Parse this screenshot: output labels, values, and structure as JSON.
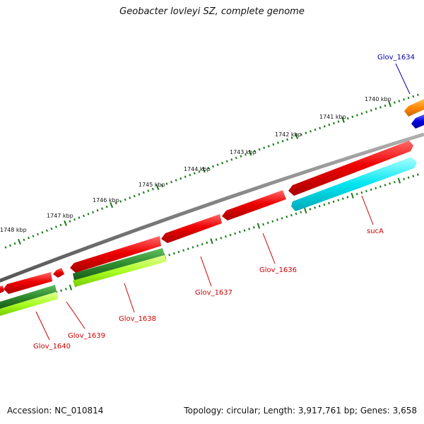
{
  "title": "Geobacter lovleyi SZ, complete genome",
  "footer": {
    "accession": "Accession: NC_010814",
    "summary": "Topology: circular; Length: 3,917,761 bp; Genes: 3,658"
  },
  "colors": {
    "backbone": "#808080",
    "forward_gene": "#ee0000",
    "reverse_gene": "#ee0000",
    "cyan_gene": "#00e5f0",
    "dark_green": "#2e8b2e",
    "light_green": "#aaff22",
    "orange": "#ff8800",
    "blue": "#0000dd",
    "tick": "#1a7a1a",
    "label_red": "#cc0000",
    "label_blue": "#0000aa"
  },
  "ruler": {
    "unit": "kbp",
    "labels": [
      "1740 kbp",
      "1741 kbp",
      "1742 kbp",
      "1743 kbp",
      "1744 kbp",
      "1745 kbp",
      "1746 kbp",
      "1747 kbp",
      "1748 kbp"
    ]
  },
  "genes": [
    {
      "name": "Glov_1634",
      "color": "blue"
    },
    {
      "name": "sucA",
      "color": "red"
    },
    {
      "name": "Glov_1636",
      "color": "red"
    },
    {
      "name": "Glov_1637",
      "color": "red"
    },
    {
      "name": "Glov_1638",
      "color": "red"
    },
    {
      "name": "Glov_1639",
      "color": "red"
    },
    {
      "name": "Glov_1640",
      "color": "red"
    }
  ]
}
